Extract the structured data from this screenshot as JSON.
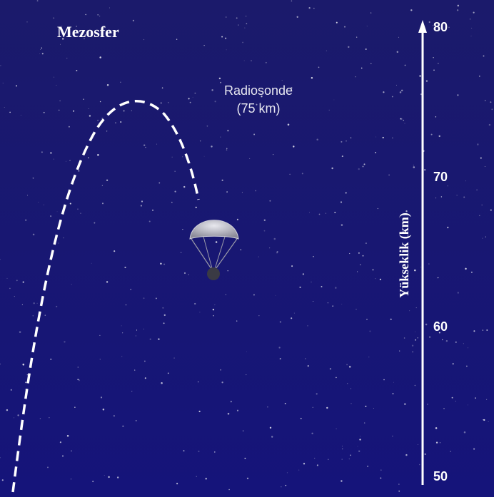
{
  "title": "Mezosfer",
  "label": {
    "name": "Radiosonde",
    "altitude": "(75 km)"
  },
  "axis": {
    "label": "Yükseklik (km)",
    "ticks": [
      80,
      70,
      60,
      50
    ]
  }
}
